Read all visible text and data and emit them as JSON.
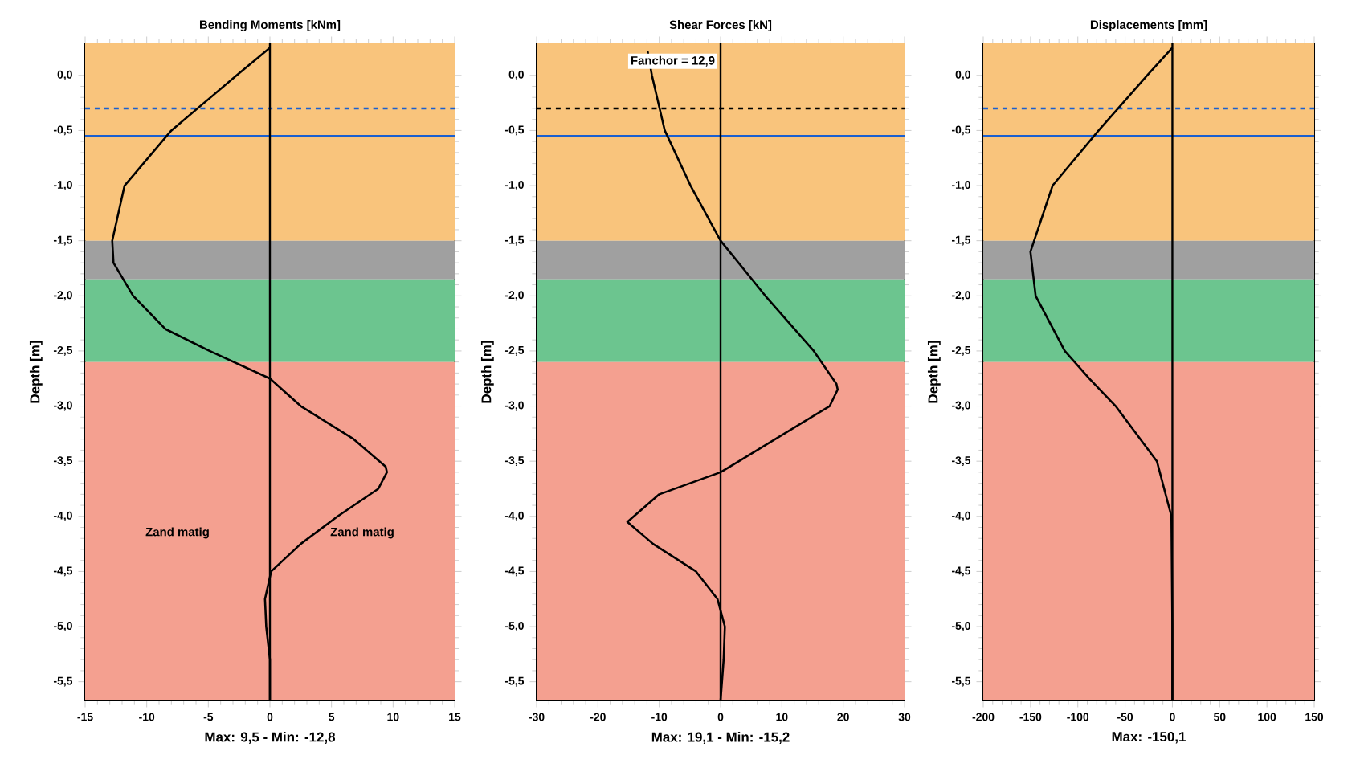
{
  "chart_data": [
    {
      "type": "line",
      "title": "Bending Moments [kNm]",
      "xlabel": "Max: 9,5 - Min: -12,8",
      "ylabel": "Depth [m]",
      "xlim": [
        -15,
        15
      ],
      "xticks": [
        -15,
        -10,
        -5,
        0,
        5,
        10,
        15
      ],
      "ylim": [
        -5.67,
        0.29
      ],
      "yticks": [
        {
          "value": 0,
          "label": "0,0"
        },
        {
          "value": -0.5,
          "label": "-0,5"
        },
        {
          "value": -1,
          "label": "-1,0"
        },
        {
          "value": -1.5,
          "label": "-1,5"
        },
        {
          "value": -2,
          "label": "-2,0"
        },
        {
          "value": -2.5,
          "label": "-2,5"
        },
        {
          "value": -3,
          "label": "-3,0"
        },
        {
          "value": -3.5,
          "label": "-3,5"
        },
        {
          "value": -4,
          "label": "-4,0"
        },
        {
          "value": -4.5,
          "label": "-4,5"
        },
        {
          "value": -5,
          "label": "-5,0"
        },
        {
          "value": -5.5,
          "label": "-5,5"
        }
      ],
      "bands": [
        {
          "axis": "y",
          "from": 0.29,
          "to": -1.5,
          "color": "#f9c47c"
        },
        {
          "axis": "y",
          "from": -1.5,
          "to": -1.85,
          "color": "#a0a0a0"
        },
        {
          "axis": "y",
          "from": -1.85,
          "to": -2.6,
          "color": "#6cc58f"
        },
        {
          "axis": "y",
          "from": -2.6,
          "to": -5.67,
          "color": "#f4a090"
        }
      ],
      "ref_lines": [
        {
          "axis": "y",
          "value": -0.55,
          "color": "#1a5fd0",
          "line_style": "solid"
        },
        {
          "axis": "y",
          "value": -0.3,
          "color": "#1a5fd0",
          "line_style": "dashed"
        },
        {
          "axis": "x",
          "value": 0,
          "color": "#000000",
          "line_style": "solid"
        }
      ],
      "annotations": [
        "Zand matig",
        "Zand matig"
      ],
      "series": [
        {
          "color": "#000000",
          "x": [
            0,
            -2.7,
            -8,
            -11.8,
            -12.8,
            -12.7,
            -11.1,
            -8.5,
            -4.9,
            0,
            2.5,
            6.8,
            9.4,
            9.5,
            8.8,
            5.5,
            2.5,
            0.1,
            -0.4,
            -0.3,
            0,
            0
          ],
          "values": [
            0.25,
            0,
            -0.5,
            -1,
            -1.5,
            -1.7,
            -2,
            -2.3,
            -2.5,
            -2.75,
            -3,
            -3.3,
            -3.55,
            -3.6,
            -3.75,
            -4,
            -4.25,
            -4.5,
            -4.75,
            -5,
            -5.3,
            -5.67
          ]
        }
      ]
    },
    {
      "type": "line",
      "title": "Shear Forces [kN]",
      "xlabel": "Max: 19,1 - Min: -15,2",
      "ylabel": "Depth [m]",
      "xlim": [
        -30,
        30
      ],
      "xticks": [
        -30,
        -20,
        -10,
        0,
        10,
        20,
        30
      ],
      "ylim": [
        -5.67,
        0.29
      ],
      "yticks": [
        {
          "value": 0,
          "label": "0,0"
        },
        {
          "value": -0.5,
          "label": "-0,5"
        },
        {
          "value": -1,
          "label": "-1,0"
        },
        {
          "value": -1.5,
          "label": "-1,5"
        },
        {
          "value": -2,
          "label": "-2,0"
        },
        {
          "value": -2.5,
          "label": "-2,5"
        },
        {
          "value": -3,
          "label": "-3,0"
        },
        {
          "value": -3.5,
          "label": "-3,5"
        },
        {
          "value": -4,
          "label": "-4,0"
        },
        {
          "value": -4.5,
          "label": "-4,5"
        },
        {
          "value": -5,
          "label": "-5,0"
        },
        {
          "value": -5.5,
          "label": "-5,5"
        }
      ],
      "bands": [
        {
          "axis": "y",
          "from": 0.29,
          "to": -1.5,
          "color": "#f9c47c"
        },
        {
          "axis": "y",
          "from": -1.5,
          "to": -1.85,
          "color": "#a0a0a0"
        },
        {
          "axis": "y",
          "from": -1.85,
          "to": -2.6,
          "color": "#6cc58f"
        },
        {
          "axis": "y",
          "from": -2.6,
          "to": -5.67,
          "color": "#f4a090"
        }
      ],
      "ref_lines": [
        {
          "axis": "y",
          "value": -0.55,
          "color": "#1a5fd0",
          "line_style": "solid"
        },
        {
          "axis": "y",
          "value": -0.3,
          "color": "#000000",
          "line_style": "dashed"
        },
        {
          "axis": "x",
          "value": 0,
          "color": "#000000",
          "line_style": "solid"
        }
      ],
      "annotations": [
        "Fanchor = 12,9"
      ],
      "series": [
        {
          "color": "#000000",
          "x": [
            -11.9,
            -11.2,
            -9.1,
            -4.9,
            0,
            7.3,
            15.2,
            18.9,
            19.1,
            17.8,
            3,
            0,
            -10,
            -15.2,
            -11,
            -4,
            -0.5,
            0.7,
            0.5,
            0
          ],
          "values": [
            0.22,
            0,
            -0.5,
            -1,
            -1.5,
            -2,
            -2.5,
            -2.8,
            -2.85,
            -3,
            -3.5,
            -3.6,
            -3.8,
            -4.05,
            -4.25,
            -4.5,
            -4.75,
            -5,
            -5.3,
            -5.67
          ]
        }
      ]
    },
    {
      "type": "line",
      "title": "Displacements [mm]",
      "xlabel": "Max: -150,1",
      "ylabel": "Depth [m]",
      "xlim": [
        -200,
        150
      ],
      "xticks": [
        -200,
        -150,
        -100,
        -50,
        0,
        50,
        100,
        150
      ],
      "ylim": [
        -5.67,
        0.29
      ],
      "yticks": [
        {
          "value": 0,
          "label": "0,0"
        },
        {
          "value": -0.5,
          "label": "-0,5"
        },
        {
          "value": -1,
          "label": "-1,0"
        },
        {
          "value": -1.5,
          "label": "-1,5"
        },
        {
          "value": -2,
          "label": "-2,0"
        },
        {
          "value": -2.5,
          "label": "-2,5"
        },
        {
          "value": -3,
          "label": "-3,0"
        },
        {
          "value": -3.5,
          "label": "-3,5"
        },
        {
          "value": -4,
          "label": "-4,0"
        },
        {
          "value": -4.5,
          "label": "-4,5"
        },
        {
          "value": -5,
          "label": "-5,0"
        },
        {
          "value": -5.5,
          "label": "-5,5"
        }
      ],
      "bands": [
        {
          "axis": "y",
          "from": 0.29,
          "to": -1.5,
          "color": "#f9c47c"
        },
        {
          "axis": "y",
          "from": -1.5,
          "to": -1.85,
          "color": "#a0a0a0"
        },
        {
          "axis": "y",
          "from": -1.85,
          "to": -2.6,
          "color": "#6cc58f"
        },
        {
          "axis": "y",
          "from": -2.6,
          "to": -5.67,
          "color": "#f4a090"
        }
      ],
      "ref_lines": [
        {
          "axis": "y",
          "value": -0.55,
          "color": "#1a5fd0",
          "line_style": "solid"
        },
        {
          "axis": "y",
          "value": -0.3,
          "color": "#1a5fd0",
          "line_style": "dashed"
        },
        {
          "axis": "x",
          "value": 0,
          "color": "#000000",
          "line_style": "solid"
        }
      ],
      "series": [
        {
          "color": "#000000",
          "x": [
            0,
            -26.7,
            -78,
            -126.7,
            -150.1,
            -144.6,
            -113.8,
            -88,
            -60,
            -16.4,
            -1,
            0,
            0
          ],
          "values": [
            0.25,
            0,
            -0.5,
            -1,
            -1.6,
            -2,
            -2.5,
            -2.75,
            -3,
            -3.5,
            -4,
            -5,
            -5.67
          ]
        }
      ]
    }
  ]
}
